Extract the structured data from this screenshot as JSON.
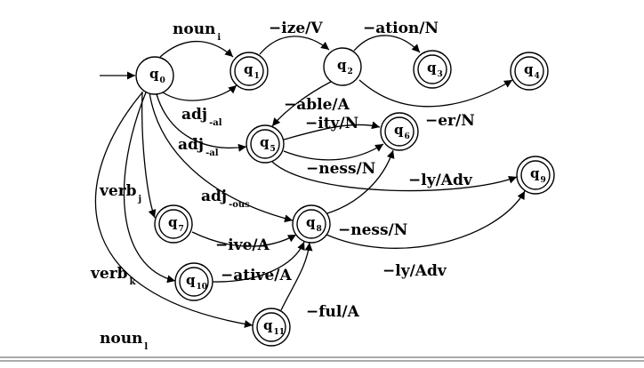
{
  "states": [
    {
      "id": "q0",
      "letter": "q",
      "sub": "0",
      "accepting": false,
      "start": true
    },
    {
      "id": "q1",
      "letter": "q",
      "sub": "1",
      "accepting": true
    },
    {
      "id": "q2",
      "letter": "q",
      "sub": "2",
      "accepting": false
    },
    {
      "id": "q3",
      "letter": "q",
      "sub": "3",
      "accepting": true
    },
    {
      "id": "q4",
      "letter": "q",
      "sub": "4",
      "accepting": true
    },
    {
      "id": "q5",
      "letter": "q",
      "sub": "5",
      "accepting": true
    },
    {
      "id": "q6",
      "letter": "q",
      "sub": "6",
      "accepting": true
    },
    {
      "id": "q7",
      "letter": "q",
      "sub": "7",
      "accepting": true
    },
    {
      "id": "q8",
      "letter": "q",
      "sub": "8",
      "accepting": true
    },
    {
      "id": "q9",
      "letter": "q",
      "sub": "9",
      "accepting": true
    },
    {
      "id": "q10",
      "letter": "q",
      "sub": "10",
      "accepting": true
    },
    {
      "id": "q11",
      "letter": "q",
      "sub": "11",
      "accepting": true
    }
  ],
  "edges": [
    {
      "from": "q0",
      "to": "q1",
      "main": "noun",
      "sub": "i"
    },
    {
      "from": "q0",
      "to": "q1",
      "main": "adj",
      "sub": "-al"
    },
    {
      "from": "q1",
      "to": "q2",
      "main": "−ize/V",
      "sub": ""
    },
    {
      "from": "q2",
      "to": "q3",
      "main": "−ation/N",
      "sub": ""
    },
    {
      "from": "q2",
      "to": "q4",
      "main": "−er/N",
      "sub": ""
    },
    {
      "from": "q2",
      "to": "q5",
      "main": "−able/A",
      "sub": ""
    },
    {
      "from": "q0",
      "to": "q5",
      "main": "adj",
      "sub": "-al"
    },
    {
      "from": "q5",
      "to": "q6",
      "main": "−ity/N",
      "sub": ""
    },
    {
      "from": "q5",
      "to": "q6",
      "main": "−ness/N",
      "sub": ""
    },
    {
      "from": "q5",
      "to": "q9",
      "main": "−ly/Adv",
      "sub": ""
    },
    {
      "from": "q0",
      "to": "q7",
      "main": "verb",
      "sub": "j"
    },
    {
      "from": "q0",
      "to": "q8",
      "main": "adj",
      "sub": "-ous"
    },
    {
      "from": "q7",
      "to": "q8",
      "main": "−ive/A",
      "sub": ""
    },
    {
      "from": "q8",
      "to": "q6",
      "main": "−ness/N",
      "sub": ""
    },
    {
      "from": "q8",
      "to": "q9",
      "main": "−ly/Adv",
      "sub": ""
    },
    {
      "from": "q0",
      "to": "q10",
      "main": "verb",
      "sub": "k"
    },
    {
      "from": "q10",
      "to": "q8",
      "main": "−ative/A",
      "sub": ""
    },
    {
      "from": "q0",
      "to": "q11",
      "main": "noun",
      "sub": "l"
    },
    {
      "from": "q11",
      "to": "q8",
      "main": "−ful/A",
      "sub": ""
    }
  ]
}
